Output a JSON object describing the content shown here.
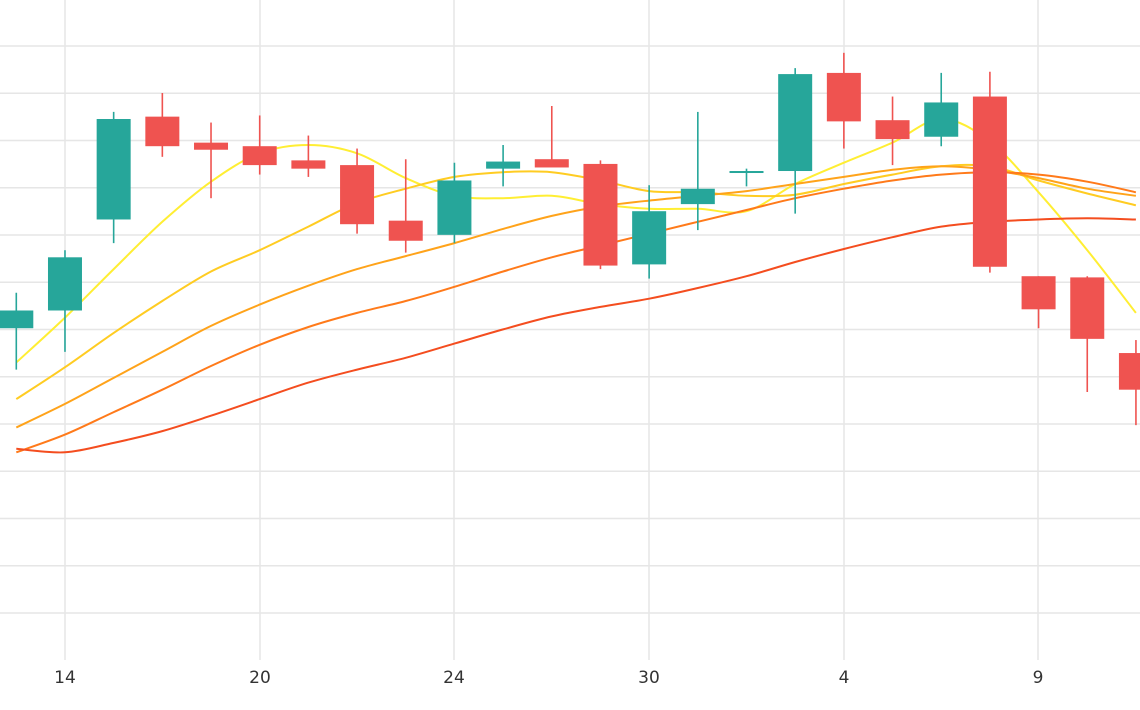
{
  "chart_data": {
    "type": "candlestick",
    "title": "",
    "xlabel": "",
    "ylabel": "",
    "x_tick_labels": [
      "14",
      "20",
      "24",
      "30",
      "4",
      "9"
    ],
    "grid": true,
    "legend": "none",
    "colors": {
      "up": "#26a69a",
      "down": "#ef5350",
      "grid": "#e6e6e6",
      "ma_1": "#ffee33",
      "ma_2": "#ffcc22",
      "ma_3": "#ffa31a",
      "ma_4": "#ff7a1a",
      "ma_5": "#f44d1f"
    },
    "candles": [
      {
        "open": 44.0,
        "high": 47.0,
        "low": 40.5,
        "close": 45.5
      },
      {
        "open": 45.5,
        "high": 50.6,
        "low": 42.0,
        "close": 50.0
      },
      {
        "open": 53.2,
        "high": 62.3,
        "low": 51.2,
        "close": 61.7
      },
      {
        "open": 61.9,
        "high": 63.9,
        "low": 58.5,
        "close": 59.4
      },
      {
        "open": 59.7,
        "high": 61.4,
        "low": 55.0,
        "close": 59.1
      },
      {
        "open": 59.4,
        "high": 62.0,
        "low": 57.0,
        "close": 57.8
      },
      {
        "open": 58.2,
        "high": 60.3,
        "low": 56.8,
        "close": 57.5
      },
      {
        "open": 57.8,
        "high": 59.2,
        "low": 52.0,
        "close": 52.8
      },
      {
        "open": 53.1,
        "high": 58.3,
        "low": 50.4,
        "close": 51.4
      },
      {
        "open": 51.9,
        "high": 58.0,
        "low": 51.2,
        "close": 56.5
      },
      {
        "open": 57.5,
        "high": 59.5,
        "low": 56.0,
        "close": 58.1
      },
      {
        "open": 58.3,
        "high": 62.8,
        "low": 57.9,
        "close": 57.6
      },
      {
        "open": 57.9,
        "high": 58.2,
        "low": 49.0,
        "close": 49.3
      },
      {
        "open": 49.4,
        "high": 56.1,
        "low": 48.2,
        "close": 53.9
      },
      {
        "open": 54.5,
        "high": 62.3,
        "low": 52.3,
        "close": 55.8
      },
      {
        "open": 57.2,
        "high": 57.5,
        "low": 56.0,
        "close": 57.3
      },
      {
        "open": 57.3,
        "high": 66.0,
        "low": 53.7,
        "close": 65.5
      },
      {
        "open": 65.6,
        "high": 67.3,
        "low": 59.2,
        "close": 61.5
      },
      {
        "open": 61.6,
        "high": 63.6,
        "low": 57.8,
        "close": 60.0
      },
      {
        "open": 60.2,
        "high": 65.6,
        "low": 59.4,
        "close": 63.1
      },
      {
        "open": 63.6,
        "high": 65.7,
        "low": 48.7,
        "close": 49.2
      },
      {
        "open": 48.4,
        "high": 48.4,
        "low": 44.0,
        "close": 45.6
      },
      {
        "open": 48.3,
        "high": 48.4,
        "low": 38.6,
        "close": 43.1
      },
      {
        "open": 41.9,
        "high": 43.0,
        "low": 35.8,
        "close": 38.8
      }
    ],
    "moving_averages": [
      {
        "period": 5,
        "values": [
          41.1,
          44.9,
          49.0,
          53.0,
          56.4,
          58.8,
          59.5,
          58.8,
          56.7,
          55.2,
          55.0,
          55.2,
          54.5,
          54.1,
          54.1,
          53.9,
          56.2,
          58.0,
          59.7,
          61.7,
          59.8,
          55.5,
          50.6,
          45.3
        ]
      },
      {
        "period": 10,
        "values": [
          38.0,
          40.7,
          43.6,
          46.3,
          48.8,
          50.6,
          52.6,
          54.6,
          55.8,
          56.8,
          57.2,
          57.2,
          56.5,
          55.6,
          55.5,
          55.2,
          55.3,
          56.2,
          57.0,
          57.7,
          57.7,
          56.5,
          55.4,
          54.4
        ]
      },
      {
        "period": 20,
        "values": [
          35.6,
          37.6,
          39.8,
          42.0,
          44.2,
          46.0,
          47.6,
          49.0,
          50.1,
          51.2,
          52.4,
          53.5,
          54.3,
          54.8,
          55.2,
          55.6,
          56.2,
          56.8,
          57.4,
          57.7,
          57.4,
          56.7,
          55.8,
          55.2
        ]
      },
      {
        "period": 30,
        "values": [
          33.5,
          35.0,
          36.9,
          38.8,
          40.8,
          42.6,
          44.1,
          45.3,
          46.3,
          47.5,
          48.8,
          50.0,
          51.0,
          52.0,
          53.0,
          54.0,
          55.0,
          55.8,
          56.5,
          57.0,
          57.2,
          57.0,
          56.4,
          55.5
        ]
      },
      {
        "period": 60,
        "values": [
          33.8,
          33.5,
          34.3,
          35.3,
          36.6,
          38.0,
          39.4,
          40.5,
          41.5,
          42.7,
          43.9,
          45.0,
          45.8,
          46.5,
          47.4,
          48.4,
          49.6,
          50.7,
          51.7,
          52.6,
          53.0,
          53.2,
          53.3,
          53.2
        ]
      }
    ]
  }
}
